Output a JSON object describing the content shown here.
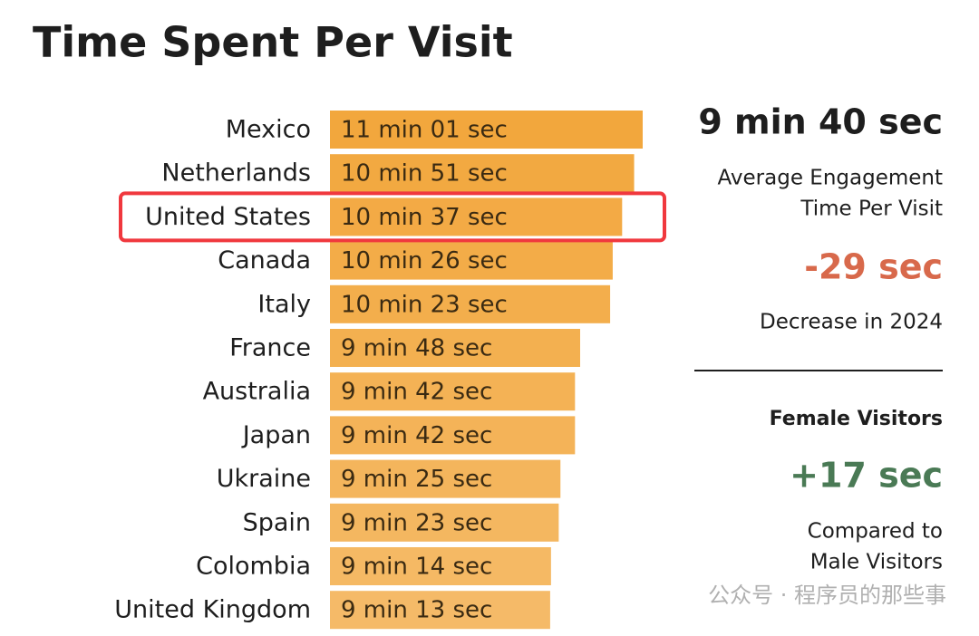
{
  "chart_data": {
    "type": "hbar",
    "title": "Time Spent Per Visit",
    "categories": [
      "Mexico",
      "Netherlands",
      "United States",
      "Canada",
      "Italy",
      "France",
      "Australia",
      "Japan",
      "Ukraine",
      "Spain",
      "Colombia",
      "United Kingdom"
    ],
    "values": [
      661,
      651,
      637,
      626,
      623,
      588,
      582,
      582,
      565,
      563,
      554,
      553
    ],
    "value_labels": [
      "11 min 01 sec",
      "10 min 51 sec",
      "10 min 37 sec",
      "10 min 26 sec",
      "10 min 23 sec",
      "9 min 48 sec",
      "9 min 42 sec",
      "9 min 42 sec",
      "9 min 25 sec",
      "9 min 23 sec",
      "9 min 14 sec",
      "9 min 13 sec"
    ],
    "color": "#f2a73d",
    "xlim": [
      296,
      661
    ],
    "highlight": 2,
    "highlight_color": "#f0383e",
    "stats": [
      {
        "value": "9 min 40 sec",
        "color": "#1e1e1e",
        "lines": [
          "Average Engagement",
          "Time Per Visit"
        ]
      },
      {
        "value": "-29 sec",
        "color": "#d8694b",
        "lines": [
          "Decrease in 2024"
        ]
      },
      {
        "heading": "Female Visitors",
        "value": "+17 sec",
        "color": "#4a7a55",
        "lines": [
          "Compared to",
          "Male Visitors"
        ]
      }
    ],
    "watermark": "公众号 · 程序员的那些事"
  }
}
